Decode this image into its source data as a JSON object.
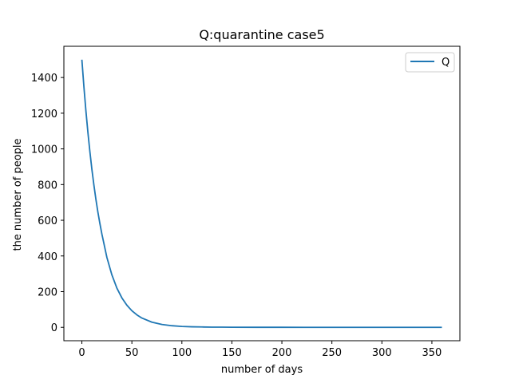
{
  "chart_data": {
    "type": "line",
    "title": "Q:quarantine  case5",
    "xlabel": "number of days",
    "ylabel": "the number of people",
    "xlim": [
      -18,
      378
    ],
    "ylim": [
      -75,
      1575
    ],
    "xticks": [
      0,
      50,
      100,
      150,
      200,
      250,
      300,
      350
    ],
    "yticks": [
      0,
      200,
      400,
      600,
      800,
      1000,
      1200,
      1400
    ],
    "grid": false,
    "legend_position": "top-right",
    "series": [
      {
        "name": "Q",
        "color": "#1f77b4",
        "x": [
          0,
          2,
          4,
          6,
          8,
          10,
          12,
          14,
          16,
          18,
          20,
          25,
          30,
          35,
          40,
          45,
          50,
          55,
          60,
          70,
          80,
          90,
          100,
          110,
          120,
          130,
          140,
          150,
          175,
          200,
          225,
          250,
          275,
          300,
          325,
          360
        ],
        "y": [
          1500,
          1350,
          1215,
          1094,
          985,
          886,
          798,
          718,
          646,
          582,
          523,
          392,
          294,
          220,
          165,
          124,
          93,
          70,
          52,
          29,
          16,
          9,
          5,
          3,
          2,
          1,
          1,
          0.5,
          0.2,
          0.1,
          0,
          0,
          0,
          0,
          0,
          0
        ]
      }
    ]
  }
}
